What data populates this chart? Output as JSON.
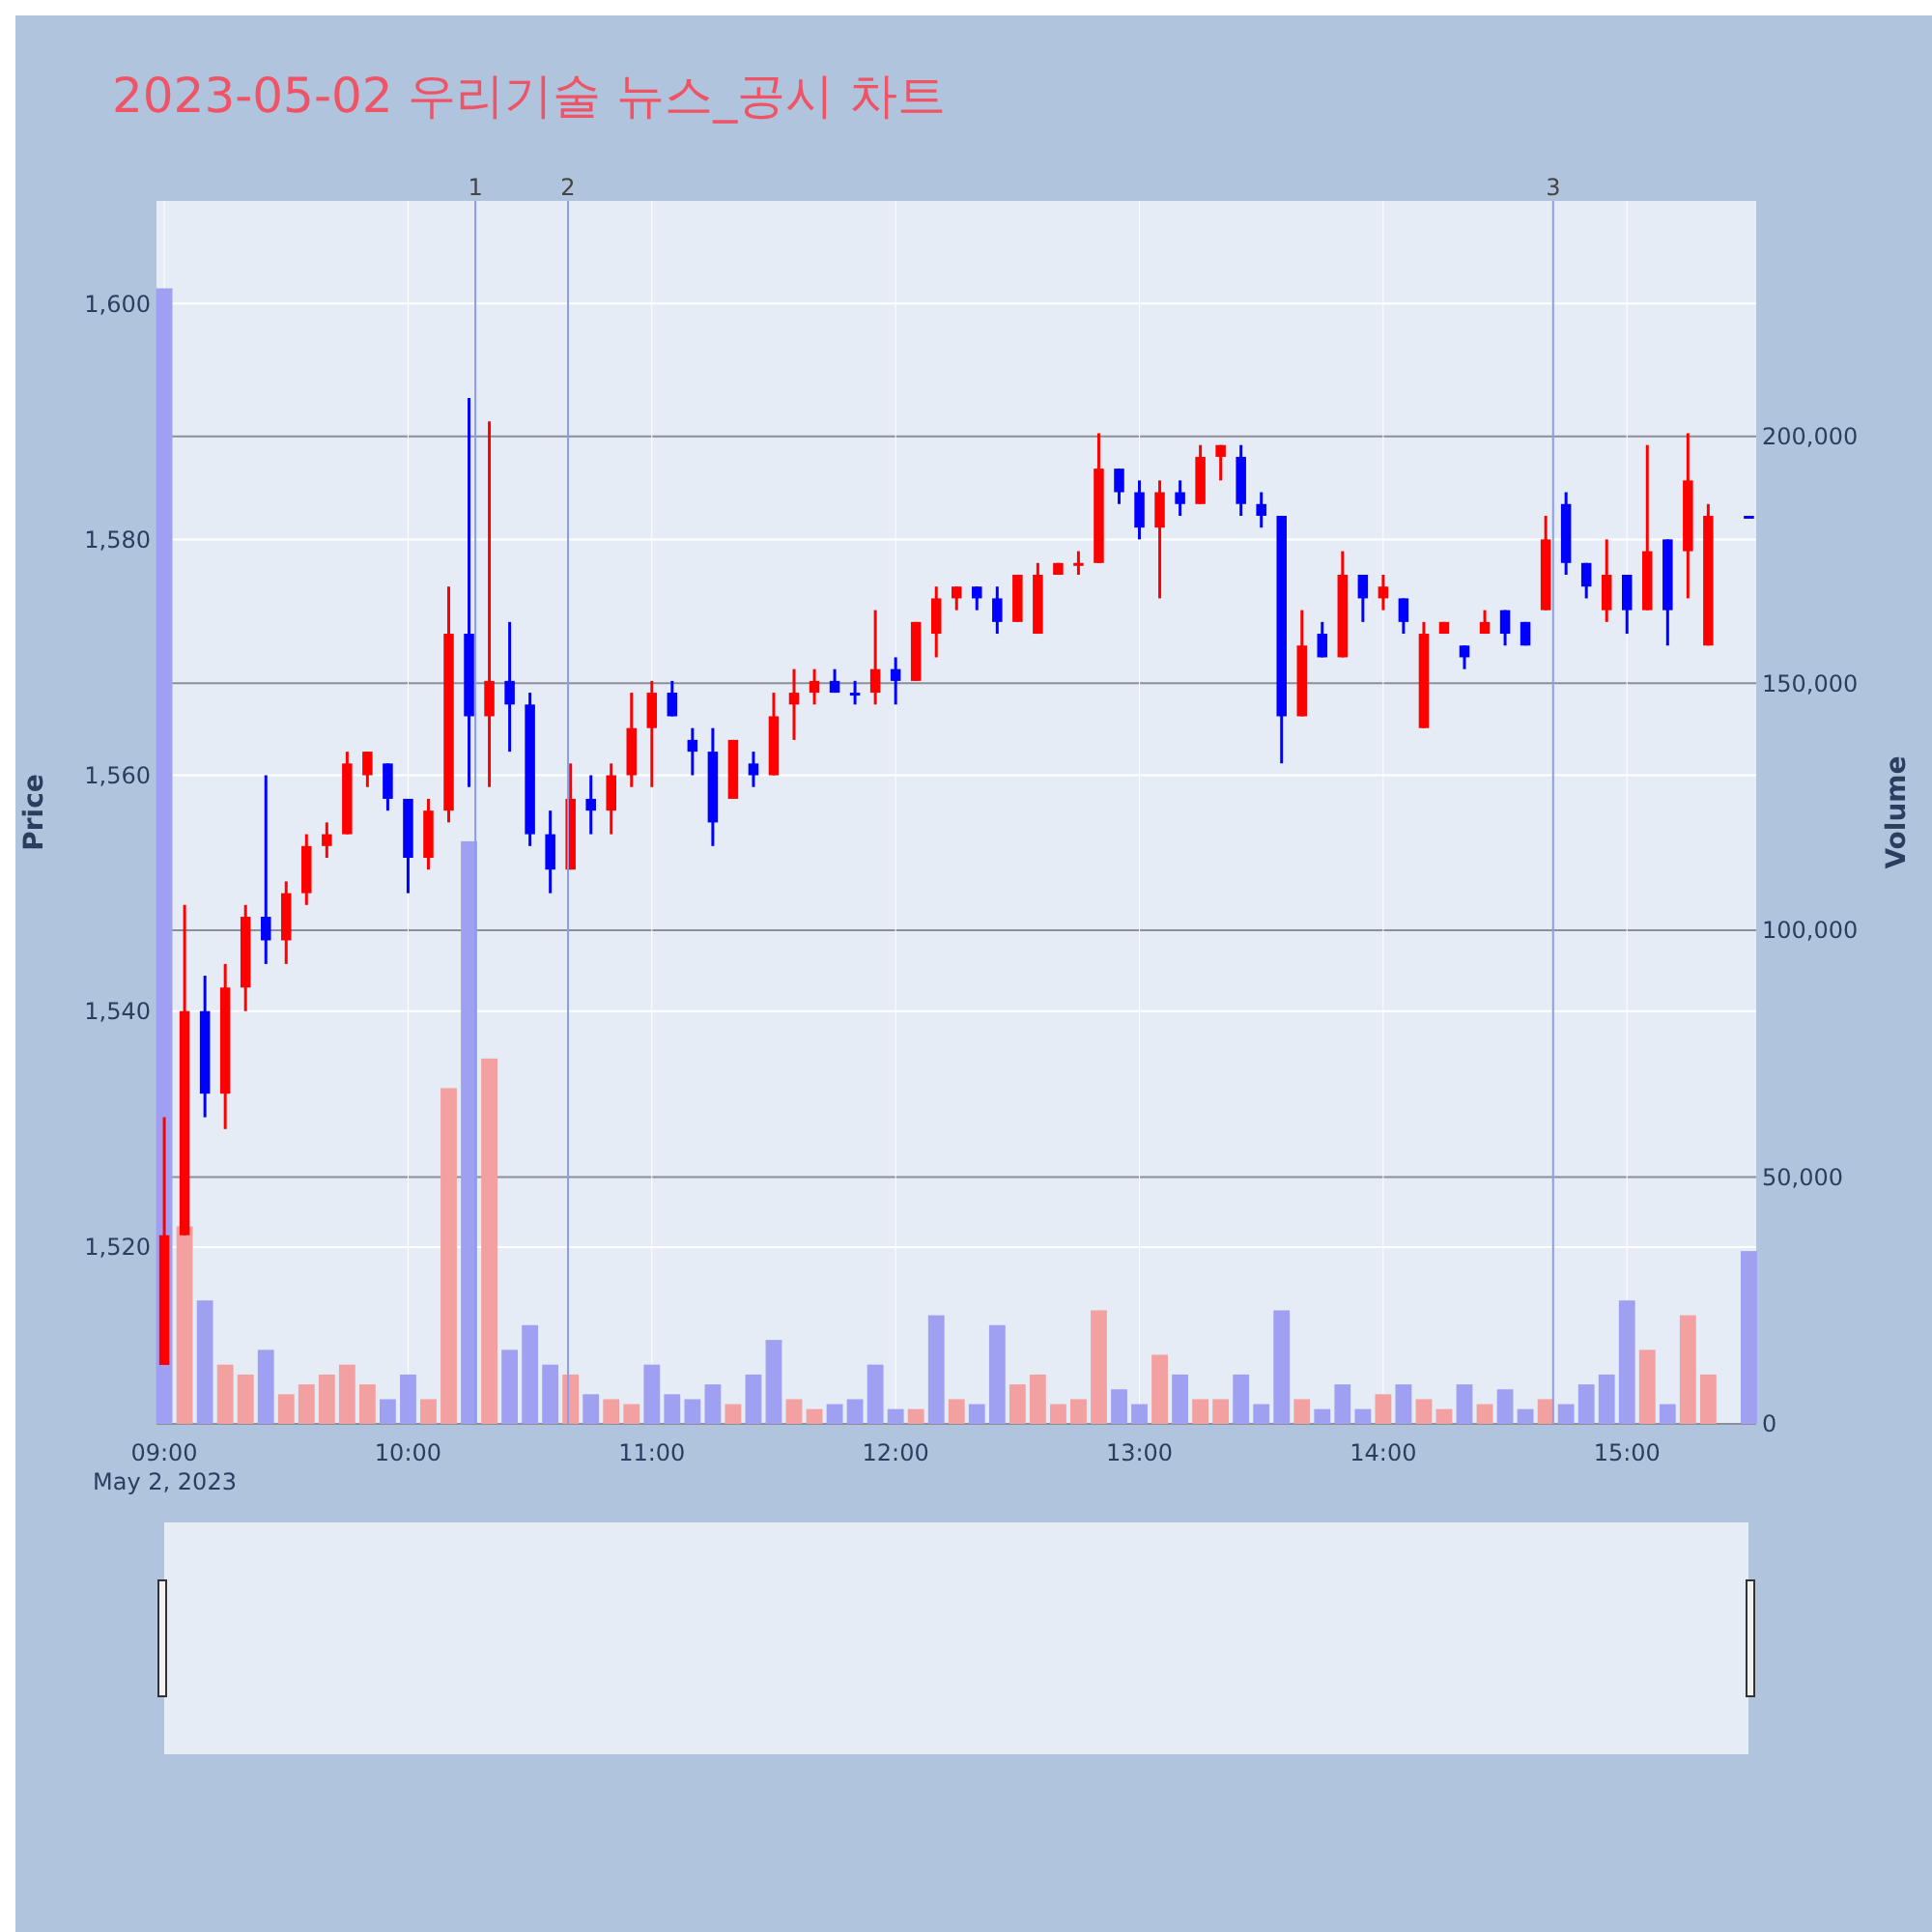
{
  "chart_data": {
    "type": "candlestick",
    "title": "2023-05-02 우리기술 뉴스_공시 차트",
    "ylabel": "Price",
    "y2label": "Volume",
    "annotations": [
      "May 2, 2023",
      "1",
      "2",
      "3"
    ],
    "x": [
      9,
      9.0833,
      9.1667,
      9.25,
      9.3333,
      9.4167,
      9.5,
      9.5833,
      9.6667,
      9.75,
      9.8333,
      9.9167,
      10,
      10.0833,
      10.1667,
      10.25,
      10.3333,
      10.4167,
      10.5,
      10.5833,
      10.6667,
      10.75,
      10.8333,
      10.9167,
      11,
      11.0833,
      11.1667,
      11.25,
      11.3333,
      11.4167,
      11.5,
      11.5833,
      11.6667,
      11.75,
      11.8333,
      11.9167,
      12,
      12.0833,
      12.1667,
      12.25,
      12.3333,
      12.4167,
      12.5,
      12.5833,
      12.6667,
      12.75,
      12.8333,
      12.9167,
      13,
      13.0833,
      13.1667,
      13.25,
      13.3333,
      13.4167,
      13.5,
      13.5833,
      13.6667,
      13.75,
      13.8333,
      13.9167,
      14,
      14.0833,
      14.1667,
      14.25,
      14.3333,
      14.4167,
      14.5,
      14.5833,
      14.6667,
      14.75,
      14.8333,
      14.9167,
      15,
      15.0833,
      15.1667,
      15.25,
      15.3333,
      15.5
    ],
    "xlim": [
      8.968,
      15.53
    ],
    "xticks": [
      {
        "value": 9,
        "label": "09:00"
      },
      {
        "value": 10,
        "label": "10:00"
      },
      {
        "value": 11,
        "label": "11:00"
      },
      {
        "value": 12,
        "label": "12:00"
      },
      {
        "value": 13,
        "label": "13:00"
      },
      {
        "value": 14,
        "label": "14:00"
      },
      {
        "value": 15,
        "label": "15:00"
      }
    ],
    "ylim": [
      1505,
      1608.7
    ],
    "yticks": [
      {
        "value": 1520,
        "label": "1,520"
      },
      {
        "value": 1540,
        "label": "1,540"
      },
      {
        "value": 1560,
        "label": "1,560"
      },
      {
        "value": 1580,
        "label": "1,580"
      },
      {
        "value": 1600,
        "label": "1,600"
      }
    ],
    "y2lim": [
      0,
      247700
    ],
    "y2ticks": [
      {
        "value": 0,
        "label": "0"
      },
      {
        "value": 50000,
        "label": "50,000"
      },
      {
        "value": 100000,
        "label": "100,000"
      },
      {
        "value": 150000,
        "label": "150,000"
      },
      {
        "value": 200000,
        "label": "200,000"
      }
    ],
    "grid": true,
    "ref_lines": [
      {
        "axis": "x",
        "value": 10.276,
        "color": "#8c9cf0"
      },
      {
        "axis": "x",
        "value": 10.656,
        "color": "#8c9cf0"
      },
      {
        "axis": "x",
        "value": 14.697,
        "color": "#8c9cf0"
      }
    ],
    "series": [
      {
        "type": "candlestick",
        "ohlc": [
          [
            1510,
            1531,
            1510,
            1521
          ],
          [
            1521,
            1549,
            1521,
            1540
          ],
          [
            1540,
            1543,
            1531,
            1533
          ],
          [
            1533,
            1544,
            1530,
            1542
          ],
          [
            1542,
            1549,
            1540,
            1548
          ],
          [
            1548,
            1560,
            1544,
            1546
          ],
          [
            1546,
            1551,
            1544,
            1550
          ],
          [
            1550,
            1555,
            1549,
            1554
          ],
          [
            1554,
            1556,
            1553,
            1555
          ],
          [
            1555,
            1562,
            1555,
            1561
          ],
          [
            1560,
            1562,
            1559,
            1562
          ],
          [
            1561,
            1561,
            1557,
            1558
          ],
          [
            1558,
            1558,
            1550,
            1553
          ],
          [
            1553,
            1558,
            1552,
            1557
          ],
          [
            1557,
            1576,
            1556,
            1572
          ],
          [
            1572,
            1592,
            1559,
            1565
          ],
          [
            1565,
            1590,
            1559,
            1568
          ],
          [
            1568,
            1573,
            1562,
            1566
          ],
          [
            1566,
            1567,
            1554,
            1555
          ],
          [
            1555,
            1557,
            1550,
            1552
          ],
          [
            1552,
            1561,
            1552,
            1558
          ],
          [
            1558,
            1560,
            1555,
            1557
          ],
          [
            1557,
            1561,
            1555,
            1560
          ],
          [
            1560,
            1567,
            1559,
            1564
          ],
          [
            1564,
            1568,
            1559,
            1567
          ],
          [
            1567,
            1568,
            1565,
            1565
          ],
          [
            1563,
            1564,
            1560,
            1562
          ],
          [
            1562,
            1564,
            1554,
            1556
          ],
          [
            1558,
            1563,
            1558,
            1563
          ],
          [
            1561,
            1562,
            1559,
            1560
          ],
          [
            1560,
            1567,
            1560,
            1565
          ],
          [
            1566,
            1569,
            1563,
            1567
          ],
          [
            1567,
            1569,
            1566,
            1568
          ],
          [
            1568,
            1569,
            1567,
            1567
          ],
          [
            1567,
            1568,
            1566,
            1567
          ],
          [
            1567,
            1574,
            1566,
            1569
          ],
          [
            1569,
            1570,
            1566,
            1568
          ],
          [
            1568,
            1573,
            1568,
            1573
          ],
          [
            1572,
            1576,
            1570,
            1575
          ],
          [
            1575,
            1576,
            1574,
            1576
          ],
          [
            1576,
            1576,
            1574,
            1575
          ],
          [
            1575,
            1576,
            1572,
            1573
          ],
          [
            1573,
            1577,
            1573,
            1577
          ],
          [
            1572,
            1578,
            1572,
            1577
          ],
          [
            1577,
            1578,
            1577,
            1578
          ],
          [
            1578,
            1579,
            1577,
            1578
          ],
          [
            1578,
            1589,
            1578,
            1586
          ],
          [
            1586,
            1586,
            1583,
            1584
          ],
          [
            1584,
            1585,
            1580,
            1581
          ],
          [
            1581,
            1585,
            1575,
            1584
          ],
          [
            1584,
            1585,
            1582,
            1583
          ],
          [
            1583,
            1588,
            1583,
            1587
          ],
          [
            1587,
            1588,
            1585,
            1588
          ],
          [
            1587,
            1588,
            1582,
            1583
          ],
          [
            1583,
            1584,
            1581,
            1582
          ],
          [
            1582,
            1582,
            1561,
            1565
          ],
          [
            1565,
            1574,
            1565,
            1571
          ],
          [
            1572,
            1573,
            1570,
            1570
          ],
          [
            1570,
            1579,
            1570,
            1577
          ],
          [
            1577,
            1577,
            1573,
            1575
          ],
          [
            1575,
            1577,
            1574,
            1576
          ],
          [
            1575,
            1575,
            1572,
            1573
          ],
          [
            1564,
            1573,
            1564,
            1572
          ],
          [
            1572,
            1573,
            1572,
            1573
          ],
          [
            1571,
            1571,
            1569,
            1570
          ],
          [
            1572,
            1574,
            1572,
            1573
          ],
          [
            1574,
            1574,
            1571,
            1572
          ],
          [
            1573,
            1573,
            1571,
            1571
          ],
          [
            1574,
            1582,
            1574,
            1580
          ],
          [
            1583,
            1584,
            1577,
            1578
          ],
          [
            1578,
            1578,
            1575,
            1576
          ],
          [
            1574,
            1580,
            1573,
            1577
          ],
          [
            1577,
            1577,
            1572,
            1574
          ],
          [
            1574,
            1588,
            1574,
            1579
          ],
          [
            1580,
            1580,
            1571,
            1574
          ],
          [
            1579,
            1589,
            1575,
            1585
          ],
          [
            1571,
            1583,
            1571,
            1582
          ],
          [
            1582,
            1582,
            1582,
            1582
          ]
        ],
        "colors": [
          "#ff0000",
          "#ff0000",
          "#0000ff",
          "#ff0000",
          "#ff0000",
          "#0000ff",
          "#ff0000",
          "#ff0000",
          "#ff0000",
          "#ff0000",
          "#ff0000",
          "#0000ff",
          "#0000ff",
          "#ff0000",
          "#ff0000",
          "#0000ff",
          "#ff0000",
          "#0000ff",
          "#0000ff",
          "#0000ff",
          "#ff0000",
          "#0000ff",
          "#ff0000",
          "#ff0000",
          "#ff0000",
          "#0000ff",
          "#0000ff",
          "#0000ff",
          "#ff0000",
          "#0000ff",
          "#ff0000",
          "#ff0000",
          "#ff0000",
          "#0000ff",
          "#0000ff",
          "#ff0000",
          "#0000ff",
          "#ff0000",
          "#ff0000",
          "#ff0000",
          "#0000ff",
          "#0000ff",
          "#ff0000",
          "#ff0000",
          "#ff0000",
          "#ff0000",
          "#ff0000",
          "#0000ff",
          "#0000ff",
          "#ff0000",
          "#0000ff",
          "#ff0000",
          "#ff0000",
          "#0000ff",
          "#0000ff",
          "#0000ff",
          "#ff0000",
          "#0000ff",
          "#ff0000",
          "#0000ff",
          "#ff0000",
          "#0000ff",
          "#ff0000",
          "#ff0000",
          "#0000ff",
          "#ff0000",
          "#0000ff",
          "#0000ff",
          "#ff0000",
          "#0000ff",
          "#0000ff",
          "#ff0000",
          "#0000ff",
          "#ff0000",
          "#0000ff",
          "#ff0000",
          "#ff0000",
          "#0000ff"
        ]
      },
      {
        "type": "bar",
        "axis": "y2",
        "values": [
          230000,
          40000,
          25000,
          12000,
          10000,
          15000,
          6000,
          8000,
          10000,
          12000,
          8000,
          5000,
          10000,
          5000,
          68000,
          118000,
          74000,
          15000,
          20000,
          12000,
          10000,
          6000,
          5000,
          4000,
          12000,
          6000,
          5000,
          8000,
          4000,
          10000,
          17000,
          5000,
          3000,
          4000,
          5000,
          12000,
          3000,
          3000,
          22000,
          5000,
          4000,
          20000,
          8000,
          10000,
          4000,
          5000,
          23000,
          7000,
          4000,
          14000,
          10000,
          5000,
          5000,
          10000,
          4000,
          23000,
          5000,
          3000,
          8000,
          3000,
          6000,
          8000,
          5000,
          3000,
          8000,
          4000,
          7000,
          3000,
          5000,
          4000,
          8000,
          10000,
          25000,
          15000,
          4000,
          22000,
          10000,
          35000
        ],
        "colors": [
          "#a0a0f2",
          "#f2a0a0",
          "#a0a0f2",
          "#f2a0a0",
          "#f2a0a0",
          "#a0a0f2",
          "#f2a0a0",
          "#f2a0a0",
          "#f2a0a0",
          "#f2a0a0",
          "#f2a0a0",
          "#a0a0f2",
          "#a0a0f2",
          "#f2a0a0",
          "#f2a0a0",
          "#a0a0f2",
          "#f2a0a0",
          "#a0a0f2",
          "#a0a0f2",
          "#a0a0f2",
          "#f2a0a0",
          "#a0a0f2",
          "#f2a0a0",
          "#f2a0a0",
          "#a0a0f2",
          "#a0a0f2",
          "#a0a0f2",
          "#a0a0f2",
          "#f2a0a0",
          "#a0a0f2",
          "#a0a0f2",
          "#f2a0a0",
          "#f2a0a0",
          "#a0a0f2",
          "#a0a0f2",
          "#a0a0f2",
          "#a0a0f2",
          "#f2a0a0",
          "#a0a0f2",
          "#f2a0a0",
          "#a0a0f2",
          "#a0a0f2",
          "#f2a0a0",
          "#f2a0a0",
          "#f2a0a0",
          "#f2a0a0",
          "#f2a0a0",
          "#a0a0f2",
          "#a0a0f2",
          "#f2a0a0",
          "#a0a0f2",
          "#f2a0a0",
          "#f2a0a0",
          "#a0a0f2",
          "#a0a0f2",
          "#a0a0f2",
          "#f2a0a0",
          "#a0a0f2",
          "#a0a0f2",
          "#a0a0f2",
          "#f2a0a0",
          "#a0a0f2",
          "#f2a0a0",
          "#f2a0a0",
          "#a0a0f2",
          "#f2a0a0",
          "#a0a0f2",
          "#a0a0f2",
          "#f2a0a0",
          "#a0a0f2",
          "#a0a0f2",
          "#a0a0f2",
          "#a0a0f2",
          "#f2a0a0",
          "#a0a0f2",
          "#f2a0a0",
          "#f2a0a0",
          "#a0a0f2"
        ]
      }
    ]
  }
}
